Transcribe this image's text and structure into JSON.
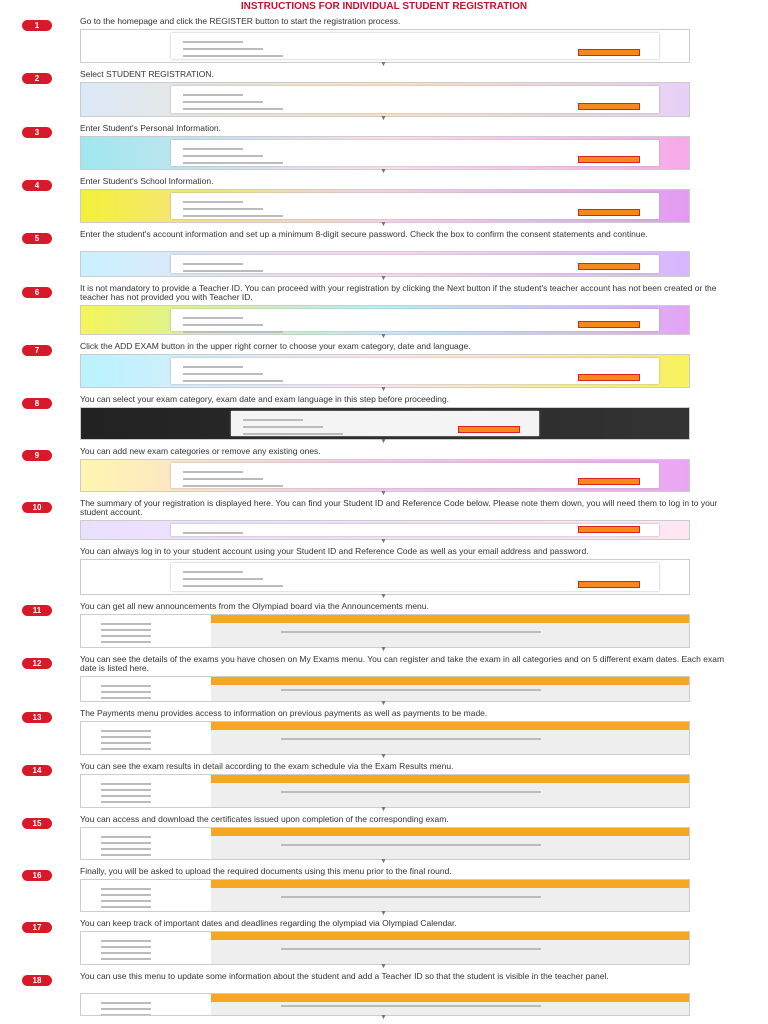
{
  "title": "INSTRUCTIONS FOR INDIVIDUAL STUDENT REGISTRATION",
  "steps": [
    {
      "number": "1",
      "text": "Go to the homepage and click the REGISTER button to start the registration process."
    },
    {
      "number": "2",
      "text": "Select STUDENT REGISTRATION."
    },
    {
      "number": "3",
      "text": "Enter Student's Personal Information."
    },
    {
      "number": "4",
      "text": "Enter Student's School Information."
    },
    {
      "number": "5",
      "text": "Enter the student's account information and set up a minimum 8-digit secure password. Check the box to confirm the consent statements and continue."
    },
    {
      "number": "6",
      "text": "It is not mandatory to provide a Teacher ID. You can proceed with your registration by clicking the Next button if the student's teacher account has not been created or the teacher has not provided you with Teacher ID."
    },
    {
      "number": "7",
      "text": "Click the ADD EXAM button in the upper right corner to choose your exam category, date and language."
    },
    {
      "number": "8",
      "text": "You can select your exam category, exam date and exam language in this step before proceeding."
    },
    {
      "number": "9",
      "text": "You can add new exam categories or remove any existing ones."
    },
    {
      "number": "10",
      "text": "The summary of your registration is displayed here. You can find your Student ID and Reference Code below. Please note them down, you will need them to log in to your student account."
    },
    {
      "number": null,
      "text": "You can always log in to your student account using your Student ID and Reference Code as well as your email address and password."
    },
    {
      "number": "11",
      "text": "You can get all new announcements from the Olympiad board via the Announcements menu."
    },
    {
      "number": "12",
      "text": "You can see the details of the exams you have chosen on My Exams menu. You can register and take the exam in all categories and on 5 different exam dates. Each exam date is listed here."
    },
    {
      "number": "13",
      "text": "The Payments menu provides access to information on previous payments as well as payments to be made."
    },
    {
      "number": "14",
      "text": "You can see the exam results in detail according to the exam schedule via the Exam Results menu."
    },
    {
      "number": "15",
      "text": "You can access and download the certificates issued upon completion of the corresponding exam."
    },
    {
      "number": "16",
      "text": "Finally, you will be asked to upload the required documents using this menu prior to the final round."
    },
    {
      "number": "17",
      "text": "You can keep track of important dates and deadlines regarding the olympiad via Olympiad Calendar."
    },
    {
      "number": "18",
      "text": "You can use this menu to update some information about the student and add a Teacher ID so that the student is visible in the teacher panel."
    }
  ]
}
